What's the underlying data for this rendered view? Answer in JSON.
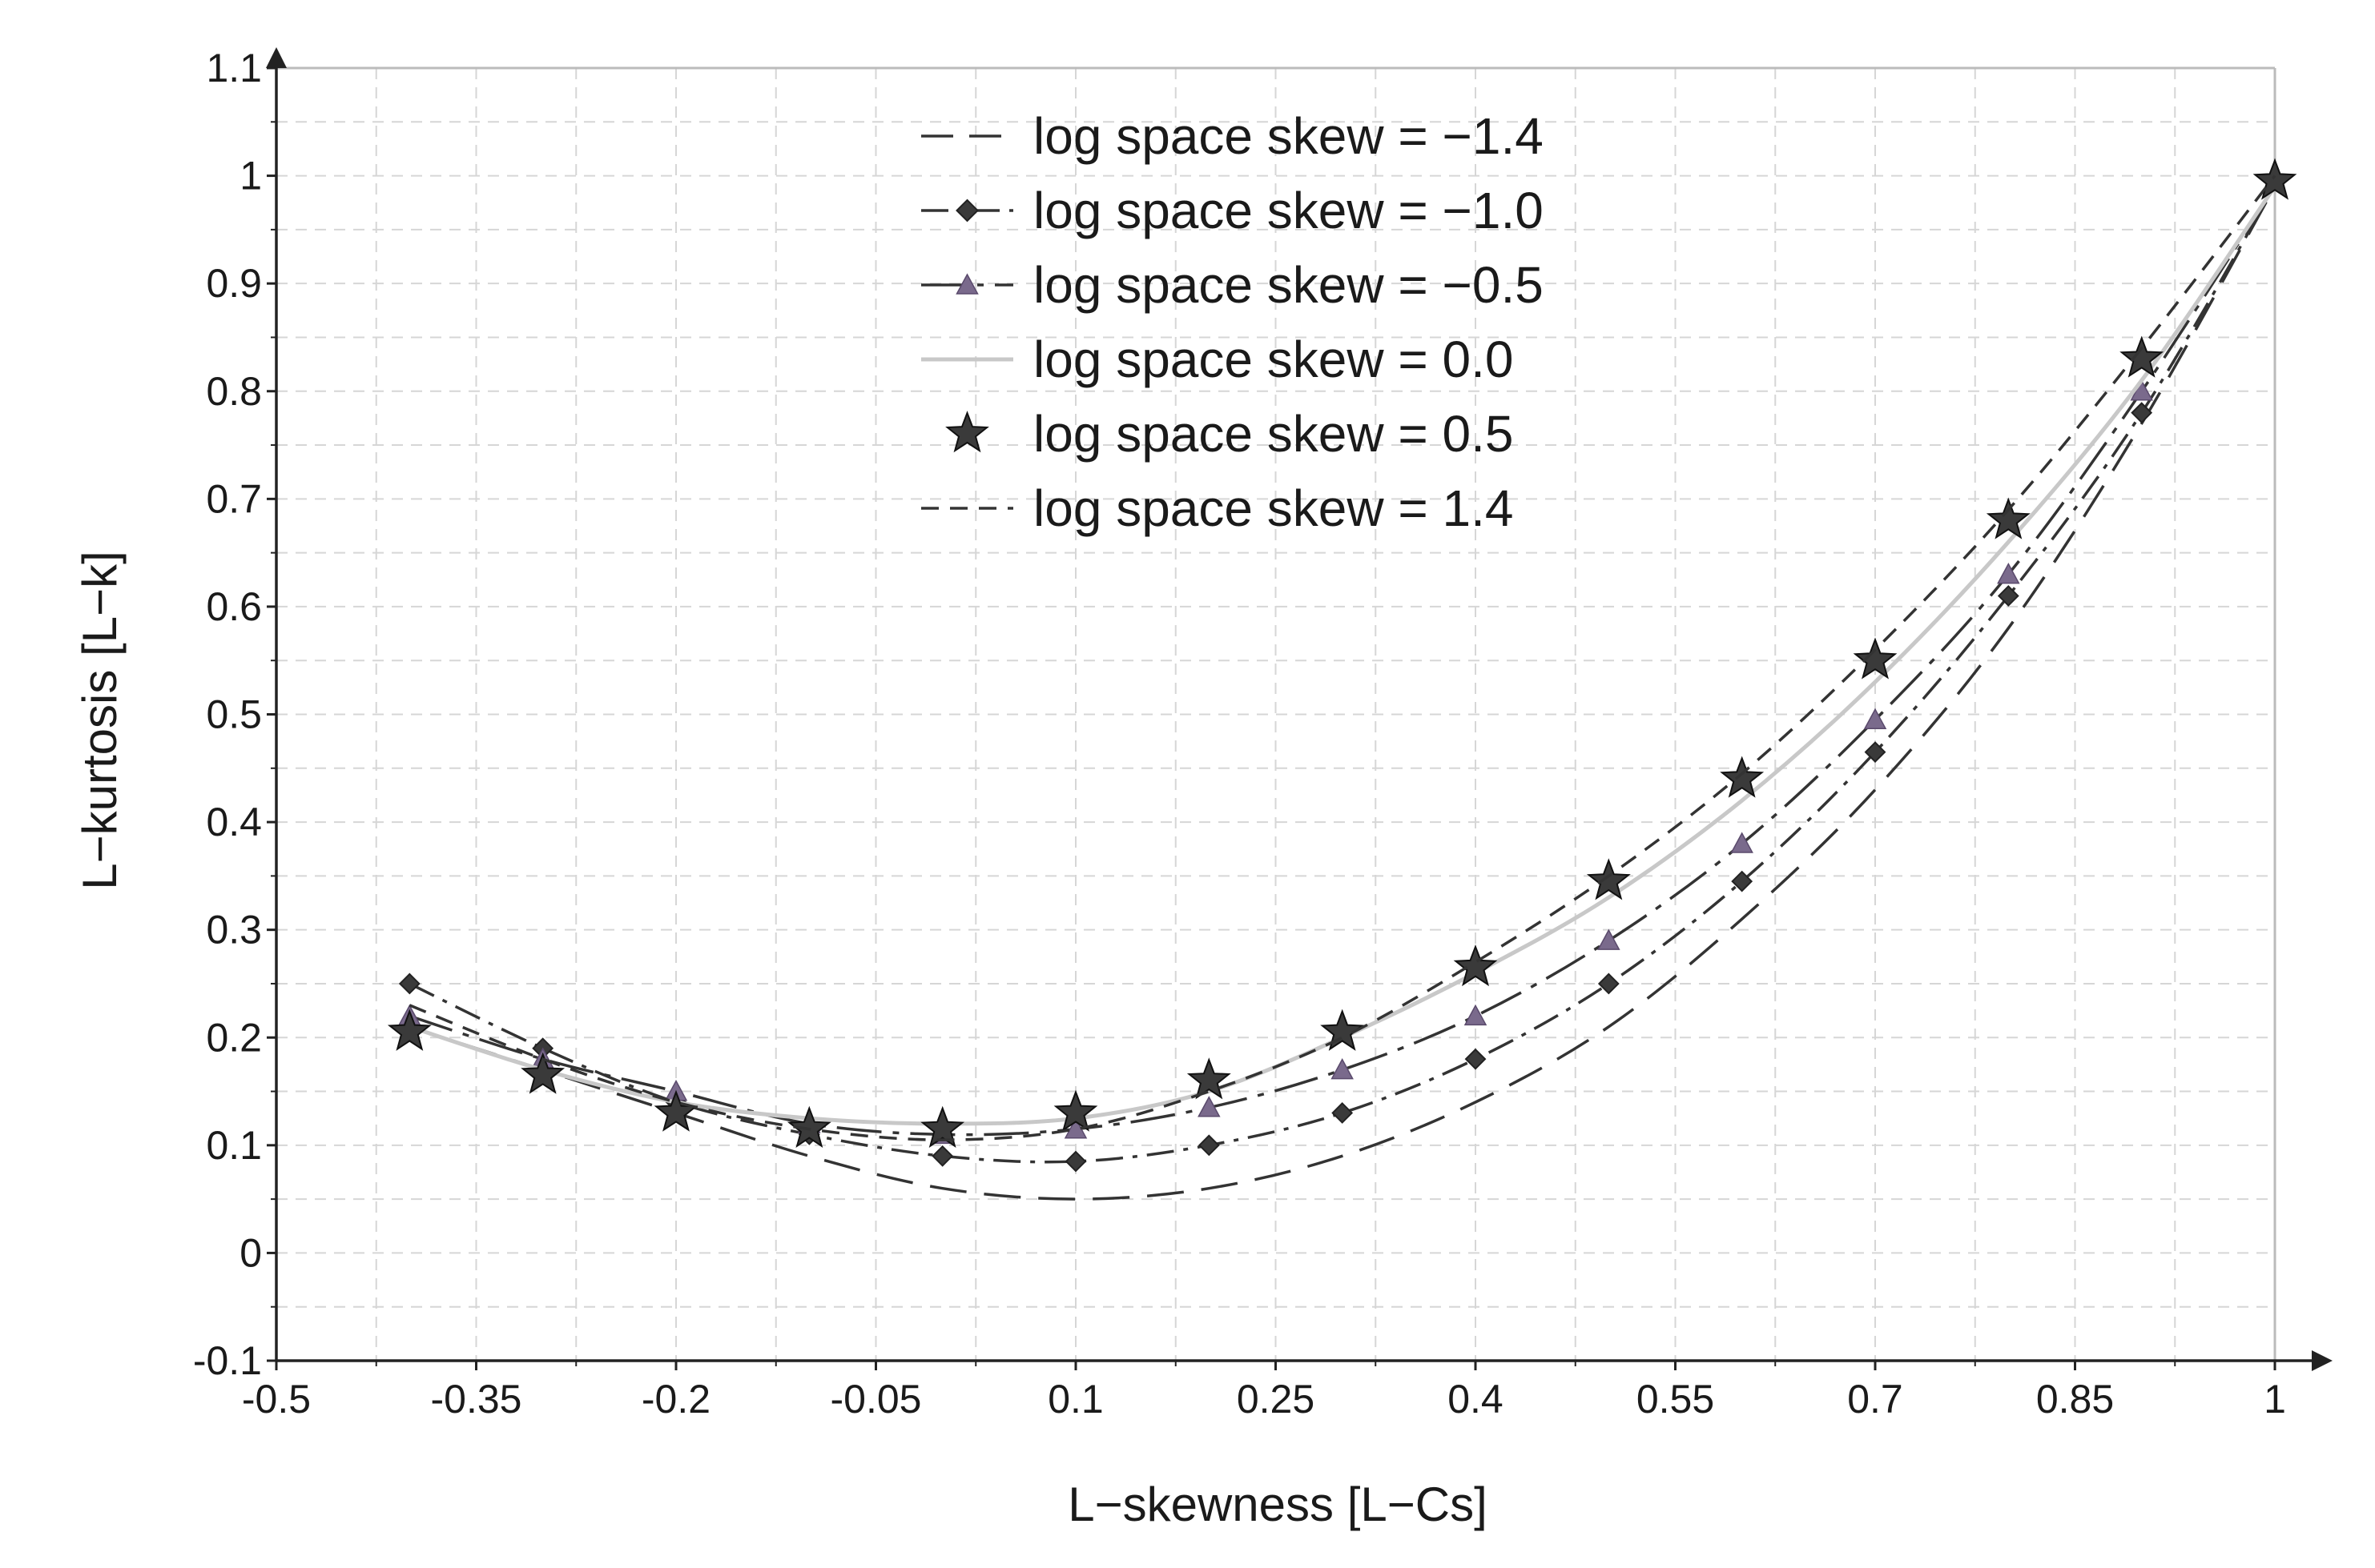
{
  "chart_data": {
    "type": "line",
    "title": "",
    "xlabel": "L−skewness [L−Cs]",
    "ylabel": "L−kurtosis [L−k]",
    "xlim": [
      -0.5,
      1
    ],
    "ylim": [
      -0.1,
      1.1
    ],
    "xticks": [
      -0.5,
      -0.35,
      -0.2,
      -0.05,
      0.1,
      0.25,
      0.4,
      0.55,
      0.7,
      0.85,
      1
    ],
    "xtick_labels": [
      "-0.5",
      "-0.35",
      "-0.2",
      "-0.05",
      "0.1",
      "0.25",
      "0.4",
      "0.55",
      "0.7",
      "0.85",
      "1"
    ],
    "yticks": [
      -0.1,
      0,
      0.1,
      0.2,
      0.3,
      0.4,
      0.5,
      0.6,
      0.7,
      0.8,
      0.9,
      1,
      1.1
    ],
    "ytick_labels": [
      "-0.1",
      "0",
      "0.1",
      "0.2",
      "0.3",
      "0.4",
      "0.5",
      "0.6",
      "0.7",
      "0.8",
      "0.9",
      "1",
      "1.1"
    ],
    "grid": true,
    "legend_position": "top-center",
    "series": [
      {
        "name": "log space skew = −1.4",
        "style": "long-dash",
        "marker": "none",
        "color": "#333333",
        "x": [
          -0.4,
          -0.3,
          -0.2,
          -0.1,
          0,
          0.1,
          0.2,
          0.3,
          0.4,
          0.5,
          0.6,
          0.7,
          0.8,
          0.9,
          1.0
        ],
        "y": [
          0.21,
          0.17,
          0.13,
          0.09,
          0.06,
          0.05,
          0.06,
          0.09,
          0.14,
          0.21,
          0.31,
          0.43,
          0.58,
          0.77,
          0.99
        ]
      },
      {
        "name": "log space skew = −1.0",
        "style": "dash-dot",
        "marker": "diamond",
        "color": "#333333",
        "x": [
          -0.4,
          -0.3,
          -0.2,
          -0.1,
          0,
          0.1,
          0.2,
          0.3,
          0.4,
          0.5,
          0.6,
          0.7,
          0.8,
          0.9,
          1.0
        ],
        "y": [
          0.25,
          0.19,
          0.14,
          0.11,
          0.09,
          0.085,
          0.1,
          0.13,
          0.18,
          0.25,
          0.345,
          0.465,
          0.61,
          0.78,
          0.99
        ]
      },
      {
        "name": "log space skew = −0.5",
        "style": "long-dash-dot",
        "marker": "triangle",
        "color": "#333333",
        "marker_color": "#7a6a8c",
        "x": [
          -0.4,
          -0.3,
          -0.2,
          -0.1,
          0,
          0.1,
          0.2,
          0.3,
          0.4,
          0.5,
          0.6,
          0.7,
          0.8,
          0.9,
          1.0
        ],
        "y": [
          0.22,
          0.18,
          0.15,
          0.12,
          0.11,
          0.115,
          0.135,
          0.17,
          0.22,
          0.29,
          0.38,
          0.495,
          0.63,
          0.8,
          0.99
        ]
      },
      {
        "name": "log space skew = 0.0",
        "style": "solid",
        "marker": "none",
        "color": "#c8c8c8",
        "x": [
          -0.4,
          -0.3,
          -0.2,
          -0.1,
          0,
          0.1,
          0.2,
          0.3,
          0.4,
          0.5,
          0.6,
          0.7,
          0.8,
          0.9,
          1.0
        ],
        "y": [
          0.21,
          0.17,
          0.14,
          0.125,
          0.12,
          0.125,
          0.15,
          0.2,
          0.26,
          0.33,
          0.42,
          0.53,
          0.66,
          0.81,
          0.99
        ]
      },
      {
        "name": "log space skew = 0.5",
        "style": "none",
        "marker": "star",
        "color": "#333333",
        "x": [
          -0.4,
          -0.3,
          -0.2,
          -0.1,
          0,
          0.1,
          0.2,
          0.3,
          0.4,
          0.5,
          0.6,
          0.7,
          0.8,
          0.9,
          1.0
        ],
        "y": [
          0.205,
          0.165,
          0.13,
          0.115,
          0.115,
          0.13,
          0.16,
          0.205,
          0.265,
          0.345,
          0.44,
          0.55,
          0.68,
          0.83,
          0.995
        ]
      },
      {
        "name": "log space skew = 1.4",
        "style": "dash",
        "marker": "none",
        "color": "#333333",
        "x": [
          -0.4,
          -0.3,
          -0.2,
          -0.1,
          0,
          0.1,
          0.2,
          0.3,
          0.4,
          0.5,
          0.6,
          0.7,
          0.8,
          0.9,
          1.0
        ],
        "y": [
          0.23,
          0.18,
          0.14,
          0.115,
          0.105,
          0.115,
          0.15,
          0.2,
          0.27,
          0.35,
          0.445,
          0.56,
          0.69,
          0.84,
          1.0
        ]
      }
    ]
  }
}
